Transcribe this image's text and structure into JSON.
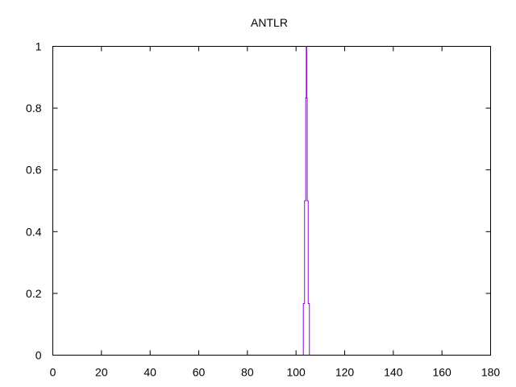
{
  "chart_data": {
    "type": "line",
    "title": "ANTLR",
    "xlabel": "",
    "ylabel": "",
    "xlim": [
      0,
      180
    ],
    "ylim": [
      0,
      1
    ],
    "xticks": [
      0,
      20,
      40,
      60,
      80,
      100,
      120,
      140,
      160,
      180
    ],
    "yticks": [
      0,
      0.2,
      0.4,
      0.6,
      0.8,
      1
    ],
    "grid": false,
    "legend": "none",
    "series": [
      {
        "color": "#9400d3",
        "style": "steps",
        "points": [
          [
            103,
            0
          ],
          [
            103,
            0.167
          ],
          [
            103.5,
            0.167
          ],
          [
            103.5,
            0.5
          ],
          [
            104,
            0.5
          ],
          [
            104,
            0.833
          ],
          [
            104.2,
            0.833
          ],
          [
            104.2,
            1
          ],
          [
            104.4,
            1
          ],
          [
            104.4,
            0.833
          ],
          [
            104.6,
            0.833
          ],
          [
            104.6,
            0.5
          ],
          [
            105,
            0.5
          ],
          [
            105,
            0.167
          ],
          [
            105.5,
            0.167
          ],
          [
            105.5,
            0
          ]
        ]
      }
    ]
  }
}
